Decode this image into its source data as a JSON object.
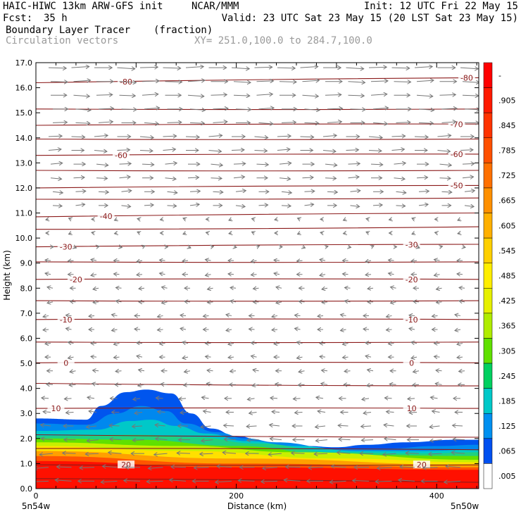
{
  "header": {
    "model": "HAIC-HIWC 13km ARW-GFS init",
    "org": "NCAR/MMM",
    "init": "Init: 12 UTC Fri 22 May 15",
    "fcst_label": "Fcst:",
    "fcst_value": "35 h",
    "valid": "Valid: 23 UTC Sat 23 May 15 (20 LST Sat 23 May 15)",
    "field": "Boundary Layer Tracer",
    "units": "(fraction)",
    "vectors": "Circulation vectors",
    "xy": "XY= 251.0,100.0 to 284.7,100.0"
  },
  "chart_data": {
    "type": "cross-section",
    "xlabel": "Distance (km)",
    "ylabel": "Height (km)",
    "xlim": [
      0,
      442
    ],
    "ylim": [
      0,
      17
    ],
    "x_ticks": [
      0,
      200,
      400
    ],
    "y_ticks": [
      "0.0",
      "1.0",
      "2.0",
      "3.0",
      "4.0",
      "5.0",
      "6.0",
      "7.0",
      "8.0",
      "9.0",
      "10.0",
      "11.0",
      "12.0",
      "13.0",
      "14.0",
      "15.0",
      "16.0",
      "17.0"
    ],
    "x_end_labels": [
      "5n54w",
      "5n50w"
    ],
    "colorbar": {
      "labels": [
        "-",
        ".905",
        ".845",
        ".785",
        ".725",
        ".665",
        ".605",
        ".545",
        ".485",
        ".425",
        ".365",
        ".305",
        ".245",
        ".185",
        ".125",
        ".065",
        ".005"
      ],
      "colors": [
        "#ff0000",
        "#ff1a00",
        "#ff3300",
        "#ff5000",
        "#ff7000",
        "#ff9000",
        "#ffb000",
        "#ffd000",
        "#ffee00",
        "#e6f000",
        "#b0ec00",
        "#60e000",
        "#00d060",
        "#00c8c8",
        "#0090f0",
        "#0050f0",
        "#ffffff"
      ]
    },
    "tracer_layers": [
      {
        "value": ".005",
        "color": "#0055ee",
        "top": [
          [
            0,
            2.8
          ],
          [
            50,
            2.75
          ],
          [
            65,
            3.3
          ],
          [
            90,
            3.85
          ],
          [
            110,
            3.95
          ],
          [
            135,
            3.8
          ],
          [
            155,
            3.0
          ],
          [
            175,
            2.4
          ],
          [
            200,
            2.1
          ],
          [
            230,
            1.85
          ],
          [
            270,
            1.7
          ],
          [
            300,
            1.65
          ],
          [
            330,
            1.75
          ],
          [
            370,
            1.85
          ],
          [
            420,
            1.95
          ],
          [
            442,
            1.95
          ]
        ]
      },
      {
        "value": ".065",
        "color": "#0088ee",
        "top": [
          [
            0,
            2.6
          ],
          [
            50,
            2.55
          ],
          [
            80,
            3.0
          ],
          [
            105,
            3.3
          ],
          [
            130,
            3.1
          ],
          [
            150,
            2.6
          ],
          [
            180,
            2.25
          ],
          [
            210,
            2.0
          ],
          [
            240,
            1.85
          ],
          [
            300,
            1.6
          ],
          [
            350,
            1.6
          ],
          [
            400,
            1.7
          ],
          [
            442,
            1.75
          ]
        ]
      },
      {
        "value": ".185",
        "color": "#00c8c8",
        "top": [
          [
            0,
            2.3
          ],
          [
            60,
            2.35
          ],
          [
            95,
            2.7
          ],
          [
            115,
            2.75
          ],
          [
            140,
            2.5
          ],
          [
            170,
            2.2
          ],
          [
            210,
            1.9
          ],
          [
            260,
            1.7
          ],
          [
            320,
            1.5
          ],
          [
            380,
            1.5
          ],
          [
            442,
            1.55
          ]
        ]
      },
      {
        "value": ".305",
        "color": "#20d080",
        "top": [
          [
            0,
            2.1
          ],
          [
            100,
            2.15
          ],
          [
            160,
            2.05
          ],
          [
            220,
            1.8
          ],
          [
            300,
            1.45
          ],
          [
            380,
            1.4
          ],
          [
            442,
            1.45
          ]
        ]
      },
      {
        "value": ".425",
        "color": "#60e000",
        "top": [
          [
            0,
            2.0
          ],
          [
            100,
            1.95
          ],
          [
            200,
            1.7
          ],
          [
            300,
            1.35
          ],
          [
            442,
            1.3
          ]
        ]
      },
      {
        "value": ".545",
        "color": "#c8f000",
        "top": [
          [
            0,
            1.85
          ],
          [
            150,
            1.7
          ],
          [
            260,
            1.45
          ],
          [
            442,
            1.15
          ]
        ]
      },
      {
        "value": ".665",
        "color": "#ffe000",
        "top": [
          [
            0,
            1.7
          ],
          [
            150,
            1.5
          ],
          [
            300,
            1.2
          ],
          [
            442,
            1.05
          ]
        ]
      },
      {
        "value": ".785",
        "color": "#ffa000",
        "top": [
          [
            0,
            1.5
          ],
          [
            200,
            1.2
          ],
          [
            442,
            0.95
          ]
        ]
      },
      {
        "value": ".905",
        "color": "#ff5500",
        "top": [
          [
            0,
            1.3
          ],
          [
            200,
            1.0
          ],
          [
            442,
            0.85
          ]
        ]
      },
      {
        "value": "-",
        "color": "#ff1000",
        "top": [
          [
            0,
            1.1
          ],
          [
            200,
            0.85
          ],
          [
            442,
            0.75
          ]
        ]
      }
    ],
    "theta_contours": [
      {
        "y_left": 0.4,
        "y_right": 0.25,
        "label": "",
        "lx": []
      },
      {
        "y_left": 0.95,
        "y_right": 0.95,
        "label": "20",
        "lx": [
          90,
          385
        ]
      },
      {
        "y_left": 1.6,
        "y_right": 1.55,
        "label": "",
        "lx": []
      },
      {
        "y_left": 2.15,
        "y_right": 2.05,
        "label": "",
        "lx": []
      },
      {
        "y_left": 3.2,
        "y_right": 3.2,
        "label": "10",
        "lx": [
          20,
          375
        ]
      },
      {
        "y_left": 4.2,
        "y_right": 4.1,
        "label": "",
        "lx": []
      },
      {
        "y_left": 5.02,
        "y_right": 5.02,
        "label": "0",
        "lx": [
          30,
          375
        ]
      },
      {
        "y_left": 5.85,
        "y_right": 5.85,
        "label": "",
        "lx": []
      },
      {
        "y_left": 6.75,
        "y_right": 6.75,
        "label": "-10",
        "lx": [
          30,
          375
        ]
      },
      {
        "y_left": 7.5,
        "y_right": 7.5,
        "label": "",
        "lx": []
      },
      {
        "y_left": 8.35,
        "y_right": 8.35,
        "label": "-20",
        "lx": [
          40,
          375
        ]
      },
      {
        "y_left": 9.05,
        "y_right": 9.05,
        "label": "",
        "lx": []
      },
      {
        "y_left": 9.65,
        "y_right": 9.75,
        "label": "-30",
        "lx": [
          30,
          375
        ]
      },
      {
        "y_left": 10.35,
        "y_right": 10.45,
        "label": "",
        "lx": []
      },
      {
        "y_left": 10.85,
        "y_right": 11.0,
        "label": "-40",
        "lx": [
          70
        ]
      },
      {
        "y_left": 11.55,
        "y_right": 11.6,
        "label": "",
        "lx": []
      },
      {
        "y_left": 12.0,
        "y_right": 12.1,
        "label": "-50",
        "lx": [
          420
        ]
      },
      {
        "y_left": 12.7,
        "y_right": 12.7,
        "label": "",
        "lx": []
      },
      {
        "y_left": 13.3,
        "y_right": 13.35,
        "label": "-60",
        "lx": [
          85,
          420
        ]
      },
      {
        "y_left": 13.95,
        "y_right": 13.95,
        "label": "",
        "lx": []
      },
      {
        "y_left": 14.5,
        "y_right": 14.55,
        "label": "-70",
        "lx": [
          420
        ]
      },
      {
        "y_left": 15.15,
        "y_right": 15.15,
        "label": "",
        "lx": []
      },
      {
        "y_left": 16.2,
        "y_right": 16.4,
        "label": "-80",
        "lx": [
          90,
          430
        ]
      }
    ]
  }
}
